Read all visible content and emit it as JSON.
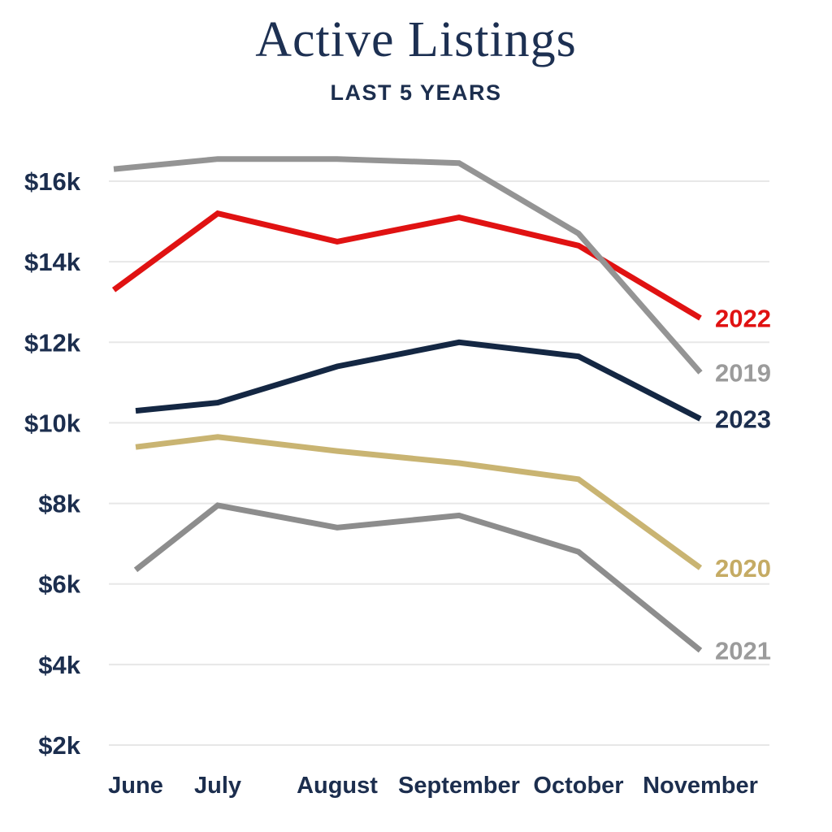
{
  "header": {
    "title": "Active Listings",
    "subtitle": "LAST 5 YEARS"
  },
  "colors": {
    "background": "#ffffff",
    "text_navy": "#1c2e4e",
    "gridline": "#e7e7e7"
  },
  "chart_data": {
    "type": "line",
    "title": "Active Listings",
    "subtitle": "LAST 5 YEARS",
    "categories": [
      "June",
      "July",
      "August",
      "September",
      "October",
      "November"
    ],
    "y_ticks": [
      {
        "label": "$2k",
        "value": 2
      },
      {
        "label": "$4k",
        "value": 4
      },
      {
        "label": "$6k",
        "value": 6
      },
      {
        "label": "$8k",
        "value": 8
      },
      {
        "label": "$10k",
        "value": 10
      },
      {
        "label": "$12k",
        "value": 12
      },
      {
        "label": "$14k",
        "value": 14
      },
      {
        "label": "$16k",
        "value": 16
      }
    ],
    "ylim": [
      2,
      17
    ],
    "units": "thousands of listings",
    "grid": "horizontal",
    "legend_position": "right-of-line-end",
    "series": [
      {
        "name": "2022",
        "color": "#e01212",
        "label_color": "#e01212",
        "values": [
          13.3,
          15.2,
          14.5,
          15.1,
          14.4,
          12.6
        ]
      },
      {
        "name": "2019",
        "color": "#949494",
        "label_color": "#9b9b9b",
        "values": [
          16.3,
          16.55,
          16.55,
          16.45,
          14.7,
          11.25
        ]
      },
      {
        "name": "2023",
        "color": "#142743",
        "label_color": "#1c2e4e",
        "values": [
          10.3,
          10.5,
          11.4,
          12.0,
          11.65,
          10.1
        ]
      },
      {
        "name": "2020",
        "color": "#c9b472",
        "label_color": "#c5ab64",
        "values": [
          9.4,
          9.65,
          9.3,
          9.0,
          8.6,
          6.4
        ]
      },
      {
        "name": "2021",
        "color": "#8d8d8d",
        "label_color": "#9b9b9b",
        "values": [
          6.35,
          7.95,
          7.4,
          7.7,
          6.8,
          4.35
        ]
      }
    ],
    "june_x_extended_series": [
      "2019",
      "2022"
    ]
  }
}
